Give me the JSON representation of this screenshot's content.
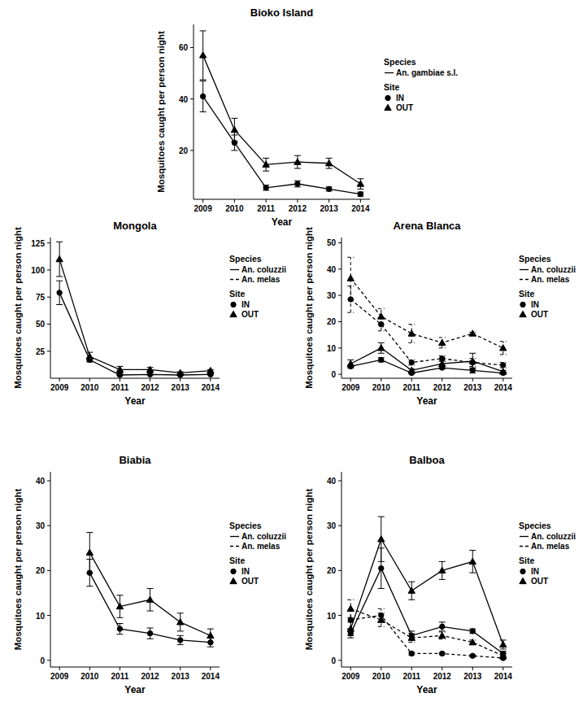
{
  "chart_data": [
    {
      "type": "line",
      "title": "Bioko Island",
      "x_label": "Year",
      "y_label": "Mosquitoes caught per person night",
      "x": [
        2009,
        2010,
        2011,
        2012,
        2013,
        2014
      ],
      "xlim": [
        2008.7,
        2014.3
      ],
      "xticks": [
        2009,
        2010,
        2011,
        2012,
        2013,
        2014
      ],
      "ylim": [
        1,
        69
      ],
      "yticks": [
        20,
        40,
        60
      ],
      "legend": "right",
      "legend_sections": [
        {
          "title": "Species",
          "entries": [
            {
              "name": "An. gambiae s.l.",
              "line_style": "solid"
            }
          ]
        },
        {
          "title": "Site",
          "entries": [
            {
              "name": "IN",
              "marker": "circle"
            },
            {
              "name": "OUT",
              "marker": "triangle"
            }
          ]
        }
      ],
      "series": [
        {
          "species": "An. gambiae s.l.",
          "site": "OUT",
          "line_style": "solid",
          "marker": "triangle",
          "color": "#000000",
          "values": [
            57,
            28,
            14.5,
            15.5,
            15,
            7
          ],
          "errors": [
            9.5,
            4.5,
            2.5,
            2.5,
            2,
            2
          ]
        },
        {
          "species": "An. gambiae s.l.",
          "site": "IN",
          "line_style": "solid",
          "marker": "circle",
          "color": "#000000",
          "values": [
            41,
            23,
            5.5,
            7,
            5,
            3
          ],
          "errors": [
            6,
            3,
            1,
            1.2,
            0.8,
            0.8
          ]
        }
      ]
    },
    {
      "type": "line",
      "title": "Mongola",
      "x_label": "Year",
      "y_label": "Mosquitoes caught per person night",
      "x": [
        2009,
        2010,
        2011,
        2012,
        2013,
        2014
      ],
      "xlim": [
        2008.7,
        2014.3
      ],
      "xticks": [
        2009,
        2010,
        2011,
        2012,
        2013,
        2014
      ],
      "ylim": [
        0,
        130
      ],
      "yticks": [
        25,
        50,
        75,
        100,
        125
      ],
      "legend": "right",
      "legend_sections": [
        {
          "title": "Species",
          "entries": [
            {
              "name": "An. coluzzii",
              "line_style": "solid"
            },
            {
              "name": "An. melas",
              "line_style": "dashed"
            }
          ]
        },
        {
          "title": "Site",
          "entries": [
            {
              "name": "IN",
              "marker": "circle"
            },
            {
              "name": "OUT",
              "marker": "triangle"
            }
          ]
        }
      ],
      "series": [
        {
          "species": "An. coluzzii",
          "site": "OUT",
          "line_style": "solid",
          "marker": "triangle",
          "color": "#000000",
          "values": [
            110,
            20,
            8,
            8,
            5,
            7
          ],
          "errors": [
            16,
            4,
            3,
            2,
            1,
            1
          ]
        },
        {
          "species": "An. coluzzii",
          "site": "IN",
          "line_style": "solid",
          "marker": "circle",
          "color": "#000000",
          "values": [
            79,
            17,
            3,
            3.5,
            3,
            3.5
          ],
          "errors": [
            11,
            2,
            0.5,
            0.5,
            0.5,
            0.5
          ]
        }
      ]
    },
    {
      "type": "line",
      "title": "Arena Blanca",
      "x_label": "Year",
      "y_label": "Mosquitoes caught per person night",
      "x": [
        2009,
        2010,
        2011,
        2012,
        2013,
        2014
      ],
      "xlim": [
        2008.7,
        2014.3
      ],
      "xticks": [
        2009,
        2010,
        2011,
        2012,
        2013,
        2014
      ],
      "ylim": [
        -1.5,
        52
      ],
      "yticks": [
        0,
        10,
        20,
        30,
        40,
        50
      ],
      "legend": "right",
      "legend_sections": [
        {
          "title": "Species",
          "entries": [
            {
              "name": "An. coluzzii",
              "line_style": "solid"
            },
            {
              "name": "An. melas",
              "line_style": "dashed"
            }
          ]
        },
        {
          "title": "Site",
          "entries": [
            {
              "name": "IN",
              "marker": "circle"
            },
            {
              "name": "OUT",
              "marker": "triangle"
            }
          ]
        }
      ],
      "series": [
        {
          "species": "An. coluzzii",
          "site": "OUT",
          "line_style": "solid",
          "marker": "triangle",
          "color": "#000000",
          "values": [
            4,
            10,
            1.5,
            4,
            5,
            1
          ],
          "errors": [
            1.5,
            2,
            0.5,
            1,
            3,
            0.5
          ]
        },
        {
          "species": "An. coluzzii",
          "site": "IN",
          "line_style": "solid",
          "marker": "circle",
          "color": "#000000",
          "values": [
            3,
            5.5,
            0.5,
            2.5,
            1.5,
            0.5
          ],
          "errors": [
            0.5,
            0.8,
            0.3,
            0.5,
            1,
            0.3
          ]
        },
        {
          "species": "An. melas",
          "site": "OUT",
          "line_style": "dashed",
          "marker": "triangle",
          "color": "#000000",
          "values": [
            36.5,
            22,
            15.5,
            12,
            15.5,
            10
          ],
          "errors": [
            8,
            3,
            3.5,
            2,
            0.5,
            2.5
          ]
        },
        {
          "species": "An. melas",
          "site": "IN",
          "line_style": "dashed",
          "marker": "circle",
          "color": "#000000",
          "values": [
            28.5,
            19,
            4.5,
            6,
            4.5,
            3.5
          ],
          "errors": [
            5,
            2.5,
            1,
            1,
            1.5,
            1
          ]
        }
      ]
    },
    {
      "type": "line",
      "title": "Biabia",
      "x_label": "Year",
      "y_label": "Mosquitoes caught per person night",
      "x": [
        2009,
        2010,
        2011,
        2012,
        2013,
        2014
      ],
      "xlim": [
        2008.7,
        2014.3
      ],
      "xticks": [
        2009,
        2010,
        2011,
        2012,
        2013,
        2014
      ],
      "ylim": [
        -1.5,
        42
      ],
      "yticks": [
        0,
        10,
        20,
        30,
        40
      ],
      "legend": "right",
      "legend_sections": [
        {
          "title": "Species",
          "entries": [
            {
              "name": "An. coluzzii",
              "line_style": "solid"
            },
            {
              "name": "An. melas",
              "line_style": "dashed"
            }
          ]
        },
        {
          "title": "Site",
          "entries": [
            {
              "name": "IN",
              "marker": "circle"
            },
            {
              "name": "OUT",
              "marker": "triangle"
            }
          ]
        }
      ],
      "series": [
        {
          "species": "An. coluzzii",
          "site": "OUT",
          "line_style": "solid",
          "marker": "triangle",
          "color": "#000000",
          "values": [
            null,
            24,
            12,
            13.5,
            8.5,
            5.5
          ],
          "errors": [
            null,
            4.5,
            2.5,
            2.5,
            2,
            1.5
          ]
        },
        {
          "species": "An. coluzzii",
          "site": "IN",
          "line_style": "solid",
          "marker": "circle",
          "color": "#000000",
          "values": [
            null,
            19.5,
            7,
            6,
            4.5,
            4
          ],
          "errors": [
            null,
            3,
            1.2,
            1.2,
            1,
            1
          ]
        }
      ]
    },
    {
      "type": "line",
      "title": "Balboa",
      "x_label": "Year",
      "y_label": "Mosquitoes caught per person night",
      "x": [
        2009,
        2010,
        2011,
        2012,
        2013,
        2014
      ],
      "xlim": [
        2008.7,
        2014.3
      ],
      "xticks": [
        2009,
        2010,
        2011,
        2012,
        2013,
        2014
      ],
      "ylim": [
        -1.5,
        42
      ],
      "yticks": [
        0,
        10,
        20,
        30,
        40
      ],
      "legend": "right",
      "legend_sections": [
        {
          "title": "Species",
          "entries": [
            {
              "name": "An. coluzzii",
              "line_style": "solid"
            },
            {
              "name": "An. melas",
              "line_style": "dashed"
            }
          ]
        },
        {
          "title": "Site",
          "entries": [
            {
              "name": "IN",
              "marker": "circle"
            },
            {
              "name": "OUT",
              "marker": "triangle"
            }
          ]
        }
      ],
      "series": [
        {
          "species": "An. coluzzii",
          "site": "OUT",
          "line_style": "solid",
          "marker": "triangle",
          "color": "#000000",
          "values": [
            7,
            27,
            15.5,
            20,
            22,
            3.5
          ],
          "errors": [
            1.5,
            5,
            2,
            2,
            2.5,
            1
          ]
        },
        {
          "species": "An. coluzzii",
          "site": "IN",
          "line_style": "solid",
          "marker": "circle",
          "color": "#000000",
          "values": [
            6,
            20.5,
            5.5,
            7.5,
            6.5,
            1.5
          ],
          "errors": [
            1,
            4.5,
            1,
            1,
            0.5,
            0.5
          ]
        },
        {
          "species": "An. melas",
          "site": "OUT",
          "line_style": "dashed",
          "marker": "triangle",
          "color": "#000000",
          "values": [
            11.5,
            9,
            5,
            5.5,
            4,
            1
          ],
          "errors": [
            2,
            1.5,
            1,
            0.8,
            0.5,
            0.5
          ]
        },
        {
          "species": "An. melas",
          "site": "IN",
          "line_style": "dashed",
          "marker": "circle",
          "color": "#000000",
          "values": [
            9,
            10,
            1.5,
            1.5,
            1,
            0.5
          ],
          "errors": [
            2,
            1.5,
            0.3,
            0.2,
            0.2,
            0.2
          ]
        }
      ]
    }
  ]
}
